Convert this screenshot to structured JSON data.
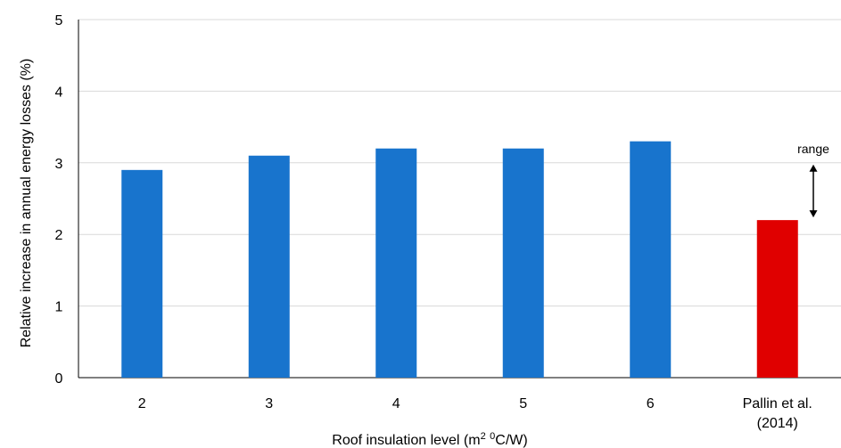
{
  "chart_data": {
    "type": "bar",
    "categories": [
      "2",
      "3",
      "4",
      "5",
      "6",
      "Pallin et al. (2014)"
    ],
    "values": [
      2.9,
      3.1,
      3.2,
      3.2,
      3.3,
      2.2
    ],
    "bar_colors": [
      "#1874CD",
      "#1874CD",
      "#1874CD",
      "#1874CD",
      "#1874CD",
      "#E00000"
    ],
    "title": "",
    "xlabel": {
      "before_sup1": "Roof insulation level (m",
      "sup1": "2",
      "between": " ",
      "sup2": "0",
      "after_sup2": "C/W)"
    },
    "ylabel": "Relative increase in annual energy  losses (%)",
    "ylim": [
      0,
      5
    ],
    "yticks": [
      0,
      1,
      2,
      3,
      4,
      5
    ],
    "grid": true,
    "annotation": {
      "text": "range",
      "arrow_from": 3.0,
      "arrow_to": 2.2
    }
  }
}
